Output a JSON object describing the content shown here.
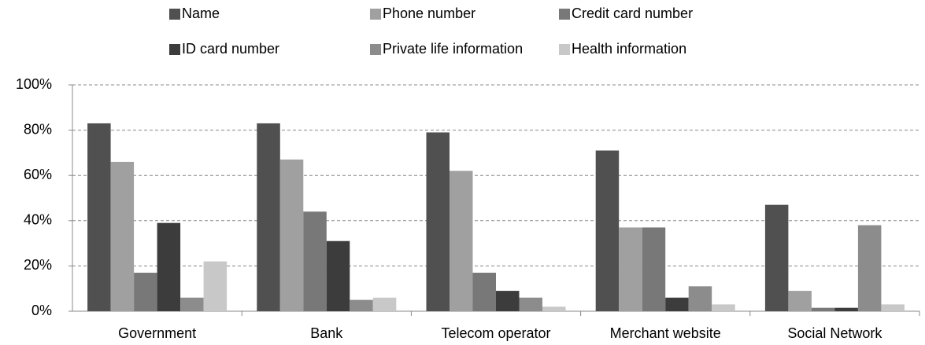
{
  "chart_data": {
    "type": "bar",
    "categories": [
      "Government",
      "Bank",
      "Telecom operator",
      "Merchant website",
      "Social Network"
    ],
    "series": [
      {
        "name": "Name",
        "color": "#505050",
        "values": [
          83,
          83,
          79,
          71,
          47
        ]
      },
      {
        "name": "Phone number",
        "color": "#a0a0a0",
        "values": [
          66,
          67,
          62,
          37,
          9
        ]
      },
      {
        "name": "Credit card number",
        "color": "#787878",
        "values": [
          17,
          44,
          17,
          37,
          1.5
        ]
      },
      {
        "name": "ID card number",
        "color": "#3c3c3c",
        "values": [
          39,
          31,
          9,
          6,
          1.5
        ]
      },
      {
        "name": "Private life information",
        "color": "#8c8c8c",
        "values": [
          6,
          5,
          6,
          11,
          38
        ]
      },
      {
        "name": "Health information",
        "color": "#c8c8c8",
        "values": [
          22,
          6,
          2,
          3,
          3
        ]
      }
    ],
    "ylim": [
      0,
      100
    ],
    "yticks": [
      {
        "value": 0,
        "label": "0%"
      },
      {
        "value": 20,
        "label": "20%"
      },
      {
        "value": 40,
        "label": "40%"
      },
      {
        "value": 60,
        "label": "60%"
      },
      {
        "value": 80,
        "label": "80%"
      },
      {
        "value": 100,
        "label": "100%"
      }
    ],
    "grid": true,
    "legend": "top"
  }
}
